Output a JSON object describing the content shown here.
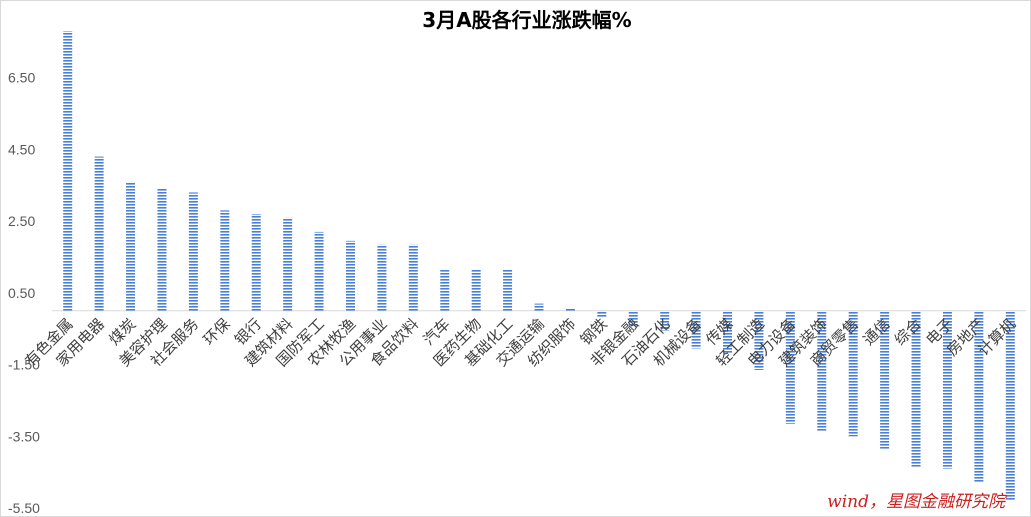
{
  "chart_data": {
    "type": "bar",
    "title": "3月A股各行业涨跌幅%",
    "xlabel": "",
    "ylabel": "",
    "ylim": [
      -5.5,
      8.5
    ],
    "yticks": [
      "6.50",
      "4.50",
      "2.50",
      "0.50",
      "-1.50",
      "-3.50",
      "-5.50"
    ],
    "ytick_values": [
      6.5,
      4.5,
      2.5,
      0.5,
      -1.5,
      -3.5,
      -5.5
    ],
    "bar_color": "#4a7fd6",
    "grid": false,
    "legend": "none",
    "categories": [
      "有色金属",
      "家用电器",
      "煤炭",
      "美容护理",
      "社会服务",
      "环保",
      "银行",
      "建筑材料",
      "国防军工",
      "农林牧渔",
      "公用事业",
      "食品饮料",
      "汽车",
      "医药生物",
      "基础化工",
      "交通运输",
      "纺织服饰",
      "钢铁",
      "非银金融",
      "石油石化",
      "机械设备",
      "传媒",
      "轻工制造",
      "电力设备",
      "建筑装饰",
      "商贸零售",
      "通信",
      "综合",
      "电子",
      "房地产",
      "计算机"
    ],
    "values": [
      7.8,
      4.3,
      3.6,
      3.4,
      3.3,
      2.8,
      2.7,
      2.6,
      2.2,
      1.95,
      1.85,
      1.85,
      1.15,
      1.15,
      1.15,
      0.2,
      0.05,
      -0.2,
      -0.45,
      -0.55,
      -1.05,
      -1.2,
      -1.65,
      -3.15,
      -3.35,
      -3.5,
      -3.85,
      -4.35,
      -4.4,
      -4.8,
      -5.3
    ],
    "source_note": "wind，星图金融研究院"
  }
}
